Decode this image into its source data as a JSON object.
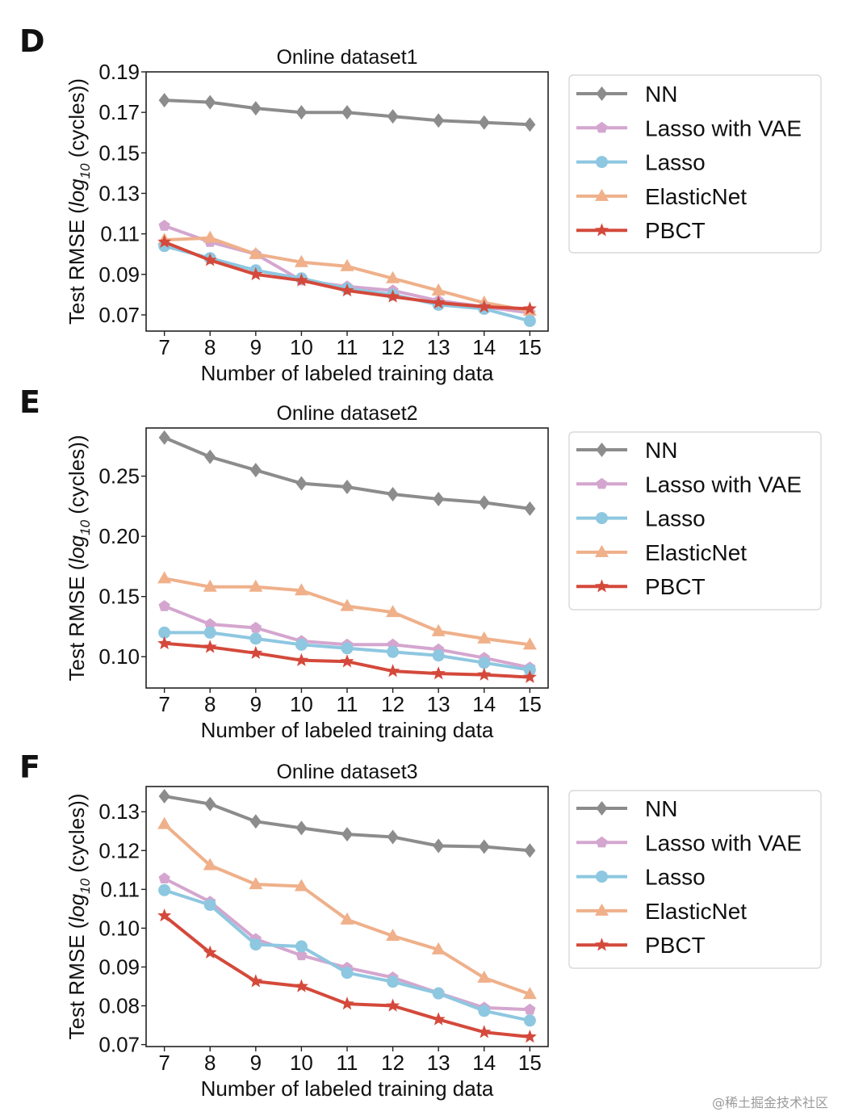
{
  "panels": [
    {
      "letter": "D"
    },
    {
      "letter": "E"
    },
    {
      "letter": "F"
    }
  ],
  "watermark": "@稀土掘金技术社区",
  "series_styles": [
    {
      "name": "NN",
      "color": "#8c8c8c",
      "marker": "diamond-marker"
    },
    {
      "name": "Lasso with VAE",
      "color": "#d4a6cf",
      "marker": "pentagon-marker"
    },
    {
      "name": "Lasso",
      "color": "#8ec7e0",
      "marker": "circle-marker"
    },
    {
      "name": "ElasticNet",
      "color": "#efb08a",
      "marker": "triangle-marker"
    },
    {
      "name": "PBCT",
      "color": "#d4493b",
      "marker": "star-marker"
    }
  ],
  "chart_data": [
    {
      "type": "line",
      "title": "Online dataset1",
      "xlabel": "Number of labeled training data",
      "ylabel_prefix": "Test RMSE (",
      "ylabel_log": "log",
      "ylabel_sub": "10",
      "ylabel_suffix": " (cycles))",
      "x": [
        7,
        8,
        9,
        10,
        11,
        12,
        13,
        14,
        15
      ],
      "xlim": [
        6.6,
        15.4
      ],
      "ylim": [
        0.062,
        0.19
      ],
      "yticks": [
        0.07,
        0.09,
        0.11,
        0.13,
        0.15,
        0.17,
        0.19
      ],
      "ytick_labels": [
        "0.07",
        "0.09",
        "0.11",
        "0.13",
        "0.15",
        "0.17",
        "0.19"
      ],
      "legend_position": "outside-right",
      "series": [
        {
          "name": "NN",
          "values": [
            0.176,
            0.175,
            0.172,
            0.17,
            0.17,
            0.168,
            0.166,
            0.165,
            0.164
          ]
        },
        {
          "name": "Lasso with VAE",
          "values": [
            0.114,
            0.106,
            0.1,
            0.087,
            0.084,
            0.082,
            0.077,
            0.074,
            0.071
          ]
        },
        {
          "name": "Lasso",
          "values": [
            0.104,
            0.098,
            0.092,
            0.088,
            0.083,
            0.08,
            0.075,
            0.073,
            0.067
          ]
        },
        {
          "name": "ElasticNet",
          "values": [
            0.107,
            0.108,
            0.1,
            0.096,
            0.094,
            0.088,
            0.082,
            0.076,
            0.072
          ]
        },
        {
          "name": "PBCT",
          "values": [
            0.106,
            0.097,
            0.09,
            0.087,
            0.082,
            0.079,
            0.076,
            0.074,
            0.073
          ]
        }
      ]
    },
    {
      "type": "line",
      "title": "Online dataset2",
      "xlabel": "Number of labeled training data",
      "ylabel_prefix": "Test RMSE (",
      "ylabel_log": "log",
      "ylabel_sub": "10",
      "ylabel_suffix": " (cycles))",
      "x": [
        7,
        8,
        9,
        10,
        11,
        12,
        13,
        14,
        15
      ],
      "xlim": [
        6.6,
        15.4
      ],
      "ylim": [
        0.074,
        0.29
      ],
      "yticks": [
        0.1,
        0.15,
        0.2,
        0.25
      ],
      "ytick_labels": [
        "0.10",
        "0.15",
        "0.20",
        "0.25"
      ],
      "legend_position": "outside-right",
      "series": [
        {
          "name": "NN",
          "values": [
            0.282,
            0.266,
            0.255,
            0.244,
            0.241,
            0.235,
            0.231,
            0.228,
            0.223
          ]
        },
        {
          "name": "Lasso with VAE",
          "values": [
            0.142,
            0.127,
            0.124,
            0.113,
            0.11,
            0.11,
            0.106,
            0.099,
            0.091
          ]
        },
        {
          "name": "Lasso",
          "values": [
            0.12,
            0.12,
            0.115,
            0.11,
            0.107,
            0.104,
            0.101,
            0.095,
            0.089
          ]
        },
        {
          "name": "ElasticNet",
          "values": [
            0.165,
            0.158,
            0.158,
            0.155,
            0.142,
            0.137,
            0.121,
            0.115,
            0.11
          ]
        },
        {
          "name": "PBCT",
          "values": [
            0.111,
            0.108,
            0.103,
            0.097,
            0.096,
            0.088,
            0.086,
            0.085,
            0.083
          ]
        }
      ]
    },
    {
      "type": "line",
      "title": "Online dataset3",
      "xlabel": "Number of labeled training data",
      "ylabel_prefix": "Test RMSE (",
      "ylabel_log": "log",
      "ylabel_sub": "10",
      "ylabel_suffix": " (cycles))",
      "x": [
        7,
        8,
        9,
        10,
        11,
        12,
        13,
        14,
        15
      ],
      "xlim": [
        6.6,
        15.4
      ],
      "ylim": [
        0.0695,
        0.1365
      ],
      "yticks": [
        0.07,
        0.08,
        0.09,
        0.1,
        0.11,
        0.12,
        0.13
      ],
      "ytick_labels": [
        "0.07",
        "0.08",
        "0.09",
        "0.10",
        "0.11",
        "0.12",
        "0.13"
      ],
      "legend_position": "outside-right",
      "series": [
        {
          "name": "NN",
          "values": [
            0.134,
            0.132,
            0.1275,
            0.1258,
            0.1242,
            0.1235,
            0.1212,
            0.121,
            0.12
          ]
        },
        {
          "name": "Lasso with VAE",
          "values": [
            0.1128,
            0.1068,
            0.0972,
            0.093,
            0.0898,
            0.0873,
            0.0833,
            0.0795,
            0.079
          ]
        },
        {
          "name": "Lasso",
          "values": [
            0.1098,
            0.106,
            0.0958,
            0.0953,
            0.0885,
            0.0862,
            0.0832,
            0.0787,
            0.0762
          ]
        },
        {
          "name": "ElasticNet",
          "values": [
            0.1268,
            0.1162,
            0.1113,
            0.1108,
            0.1022,
            0.098,
            0.0945,
            0.0872,
            0.083
          ]
        },
        {
          "name": "PBCT",
          "values": [
            0.1032,
            0.0937,
            0.0863,
            0.085,
            0.0805,
            0.08,
            0.0765,
            0.0732,
            0.072
          ]
        }
      ]
    }
  ]
}
